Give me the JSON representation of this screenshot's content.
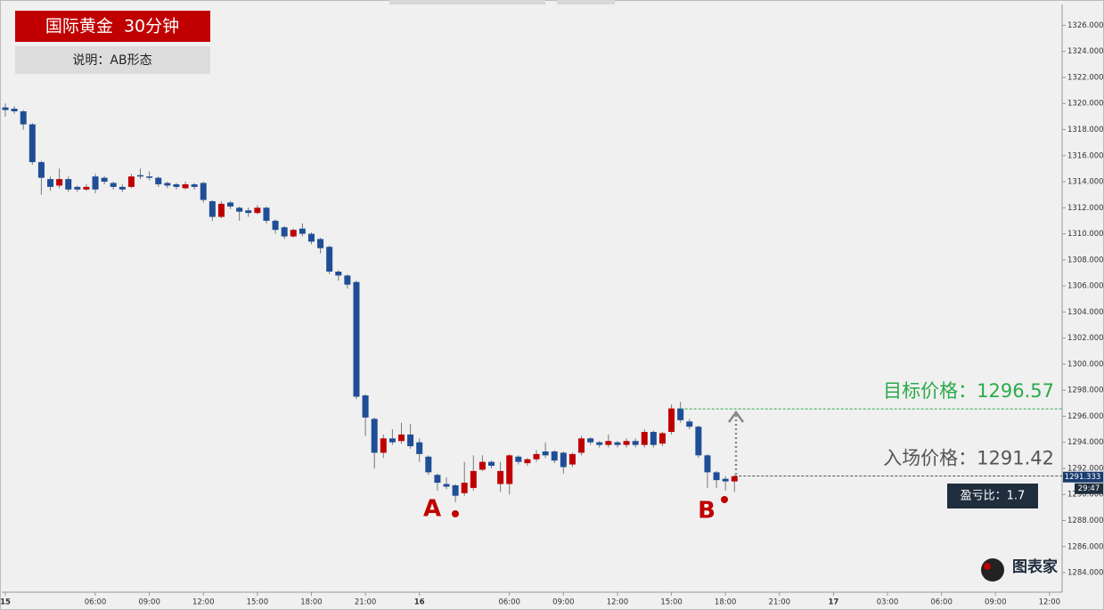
{
  "chart_data": {
    "type": "candlestick",
    "title": "国际黄金  30分钟",
    "subtitle": "说明：AB形态",
    "up_color": "#c00000",
    "down_color": "#1f4e96",
    "open": [
      1319.7,
      1319.6,
      1319.4,
      1318.4,
      1315.5,
      1314.2,
      1313.7,
      1314.2,
      1313.6,
      1313.4,
      1314.4,
      1314.3,
      1313.9,
      1313.6,
      1313.6,
      1314.5,
      1314.4,
      1314.3,
      1313.9,
      1313.8,
      1313.5,
      1313.8,
      1313.9,
      1312.5,
      1311.3,
      1312.4,
      1312.0,
      1311.8,
      1311.6,
      1312.0,
      1311.0,
      1310.5,
      1309.8,
      1310.4,
      1310.0,
      1309.6,
      1309.0,
      1307.1,
      1306.8,
      1306.3,
      1297.6,
      1295.8,
      1293.2,
      1294.3,
      1294.1,
      1294.6,
      1294.0,
      1292.9,
      1291.5,
      1290.8,
      1290.7,
      1290.1,
      1290.5,
      1291.9,
      1292.5,
      1290.8,
      1290.8,
      1292.9,
      1292.4,
      1292.7,
      1293.3,
      1293.3,
      1293.2,
      1292.3,
      1293.2,
      1294.3,
      1294.0,
      1293.8,
      1294.0,
      1293.8,
      1294.1,
      1293.8,
      1294.8,
      1293.9,
      1294.8,
      1296.6,
      1295.6,
      1295.2,
      1293.0,
      1291.7,
      1291.2,
      1291.0
    ],
    "high": [
      1320.0,
      1319.8,
      1319.5,
      1318.5,
      1315.6,
      1314.4,
      1315.0,
      1314.4,
      1313.7,
      1313.8,
      1314.6,
      1314.4,
      1314.0,
      1313.8,
      1314.6,
      1315.0,
      1314.8,
      1314.4,
      1314.0,
      1313.9,
      1314.0,
      1313.9,
      1314.0,
      1312.6,
      1312.5,
      1312.5,
      1312.1,
      1312.0,
      1312.2,
      1312.1,
      1311.1,
      1310.6,
      1310.4,
      1310.8,
      1310.1,
      1309.7,
      1309.1,
      1307.2,
      1306.9,
      1306.4,
      1297.7,
      1295.9,
      1294.6,
      1295.0,
      1295.5,
      1295.4,
      1294.3,
      1293.0,
      1291.6,
      1291.3,
      1290.8,
      1292.5,
      1293.0,
      1293.0,
      1292.6,
      1292.5,
      1293.1,
      1293.0,
      1292.8,
      1293.4,
      1294.0,
      1293.4,
      1293.3,
      1293.2,
      1294.5,
      1294.4,
      1294.1,
      1294.6,
      1294.1,
      1294.3,
      1294.3,
      1295.0,
      1294.9,
      1294.8,
      1296.9,
      1297.1,
      1295.8,
      1295.3,
      1293.1,
      1291.8,
      1291.4,
      1291.5
    ],
    "low": [
      1319.0,
      1319.2,
      1318.0,
      1315.3,
      1313.0,
      1313.3,
      1313.5,
      1313.2,
      1313.2,
      1313.3,
      1313.1,
      1313.8,
      1313.4,
      1313.2,
      1313.5,
      1314.2,
      1314.1,
      1313.6,
      1313.5,
      1313.4,
      1313.4,
      1313.4,
      1312.4,
      1311.0,
      1311.2,
      1311.9,
      1311.0,
      1311.3,
      1311.5,
      1310.8,
      1310.0,
      1309.6,
      1309.7,
      1309.8,
      1309.2,
      1308.5,
      1306.9,
      1306.4,
      1305.8,
      1297.3,
      1294.5,
      1292.0,
      1292.8,
      1293.8,
      1293.9,
      1293.5,
      1292.5,
      1291.5,
      1290.3,
      1290.4,
      1289.4,
      1289.9,
      1290.3,
      1291.8,
      1292.0,
      1290.2,
      1290.0,
      1292.3,
      1292.2,
      1292.5,
      1292.8,
      1292.4,
      1291.6,
      1292.1,
      1293.0,
      1293.8,
      1293.6,
      1293.6,
      1293.6,
      1293.6,
      1293.6,
      1293.6,
      1293.6,
      1293.7,
      1294.6,
      1295.5,
      1295.0,
      1292.8,
      1290.5,
      1290.5,
      1290.3,
      1290.2
    ],
    "close": [
      1319.5,
      1319.4,
      1318.4,
      1315.5,
      1314.3,
      1313.6,
      1314.2,
      1313.4,
      1313.4,
      1313.6,
      1313.4,
      1314.0,
      1313.6,
      1313.4,
      1314.4,
      1314.4,
      1314.3,
      1313.8,
      1313.7,
      1313.6,
      1313.8,
      1313.6,
      1312.6,
      1311.3,
      1312.3,
      1312.1,
      1311.7,
      1311.6,
      1312.0,
      1311.0,
      1310.3,
      1309.8,
      1310.3,
      1310.0,
      1309.4,
      1308.9,
      1307.1,
      1306.8,
      1306.1,
      1297.5,
      1295.9,
      1293.2,
      1294.3,
      1294.0,
      1294.6,
      1293.7,
      1293.1,
      1291.7,
      1290.9,
      1290.6,
      1289.9,
      1290.9,
      1291.8,
      1292.5,
      1292.2,
      1291.8,
      1293.0,
      1292.5,
      1292.7,
      1293.1,
      1293.0,
      1292.6,
      1292.1,
      1293.1,
      1294.3,
      1294.0,
      1293.8,
      1294.1,
      1293.8,
      1294.1,
      1293.8,
      1294.8,
      1293.8,
      1294.7,
      1296.6,
      1295.7,
      1295.2,
      1293.0,
      1291.7,
      1291.1,
      1291.0,
      1291.4
    ],
    "xlim": [
      0,
      117.4
    ],
    "xticks": [
      {
        "value": 0,
        "label": "15"
      },
      {
        "value": 10,
        "label": "06:00"
      },
      {
        "value": 16,
        "label": "09:00"
      },
      {
        "value": 22,
        "label": "12:00"
      },
      {
        "value": 28,
        "label": "15:00"
      },
      {
        "value": 34,
        "label": "18:00"
      },
      {
        "value": 40,
        "label": "21:00"
      },
      {
        "value": 46,
        "label": "16"
      },
      {
        "value": 56,
        "label": "06:00"
      },
      {
        "value": 62,
        "label": "09:00"
      },
      {
        "value": 68,
        "label": "12:00"
      },
      {
        "value": 74,
        "label": "15:00"
      },
      {
        "value": 80,
        "label": "18:00"
      },
      {
        "value": 86,
        "label": "21:00"
      },
      {
        "value": 92,
        "label": "17"
      },
      {
        "value": 98,
        "label": "03:00"
      },
      {
        "value": 104,
        "label": "06:00"
      },
      {
        "value": 110,
        "label": "09:00"
      },
      {
        "value": 116,
        "label": "12:00"
      }
    ],
    "ylim": [
      1282.5,
      1327.6
    ],
    "yticks": [
      {
        "value": 1284,
        "label": "1284.000"
      },
      {
        "value": 1286,
        "label": "1286.000"
      },
      {
        "value": 1288,
        "label": "1288.000"
      },
      {
        "value": 1290,
        "label": "1290.000"
      },
      {
        "value": 1292,
        "label": "1292.000"
      },
      {
        "value": 1294,
        "label": "1294.000"
      },
      {
        "value": 1296,
        "label": "1296.000"
      },
      {
        "value": 1298,
        "label": "1298.000"
      },
      {
        "value": 1300,
        "label": "1300.000"
      },
      {
        "value": 1302,
        "label": "1302.000"
      },
      {
        "value": 1304,
        "label": "1304.000"
      },
      {
        "value": 1306,
        "label": "1306.000"
      },
      {
        "value": 1308,
        "label": "1308.000"
      },
      {
        "value": 1310,
        "label": "1310.000"
      },
      {
        "value": 1312,
        "label": "1312.000"
      },
      {
        "value": 1314,
        "label": "1314.000"
      },
      {
        "value": 1316,
        "label": "1316.000"
      },
      {
        "value": 1318,
        "label": "1318.000"
      },
      {
        "value": 1320,
        "label": "1320.000"
      },
      {
        "value": 1322,
        "label": "1322.000"
      },
      {
        "value": 1324,
        "label": "1324.000"
      },
      {
        "value": 1326,
        "label": "1326.000"
      }
    ],
    "current_price": {
      "value": 1291.333,
      "label": "1291.333"
    },
    "countdown": "29:47",
    "target": {
      "value": 1296.57,
      "label": "目标价格：1296.57",
      "color": "#2aaa4a"
    },
    "entry": {
      "value": 1291.42,
      "label": "入场价格：1291.42",
      "color": "#555555"
    },
    "risk_reward": "盈亏比：1.7",
    "point_a": "A",
    "point_b": "B",
    "logo": "图表家"
  }
}
